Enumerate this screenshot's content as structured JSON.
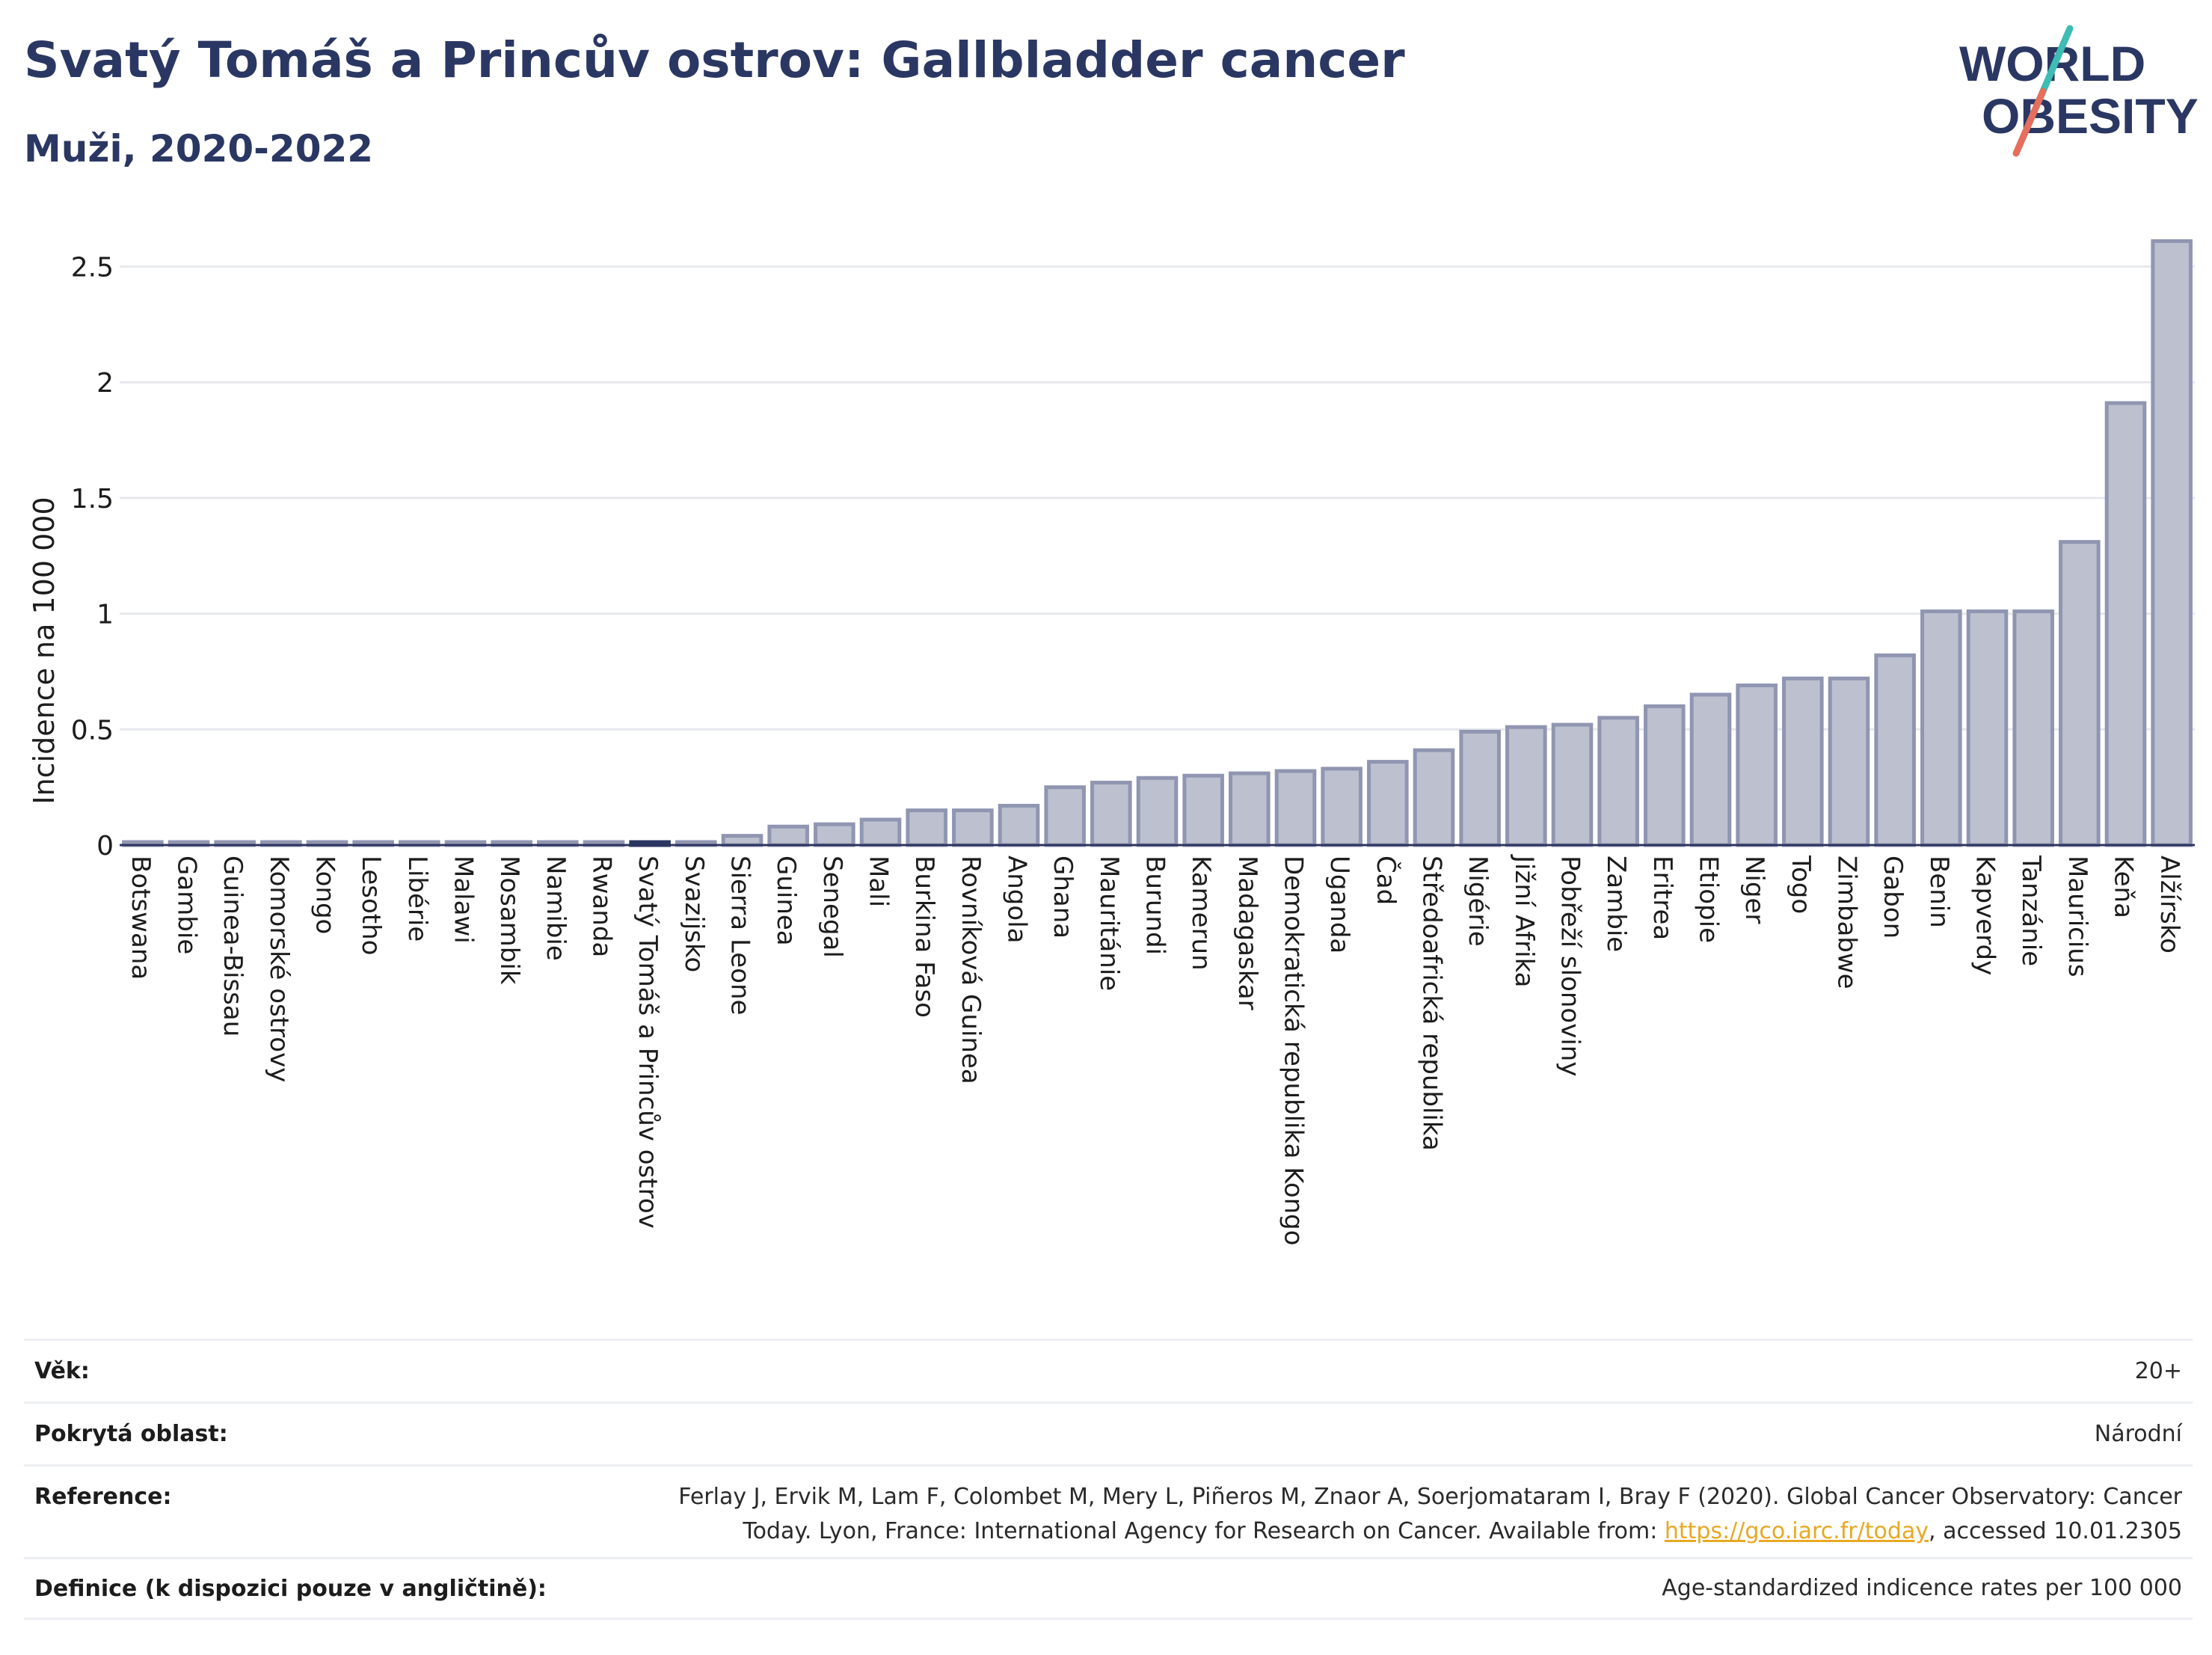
{
  "header": {
    "title": "Svatý Tomáš a Princův ostrov: Gallbladder cancer",
    "subtitle": "Muži, 2020-2022"
  },
  "logo": {
    "line1": "WORLD",
    "line2": "OBESITY"
  },
  "colors": {
    "bar_fill": "#bcc0cf",
    "bar_stroke": "#9096b1",
    "highlight_fill": "#2b3763",
    "title": "#2b3763",
    "logo_teal": "#3dbdb4",
    "logo_coral": "#e46f5d"
  },
  "chart_data": {
    "type": "bar",
    "ylabel": "Incidence na 100 000",
    "ylim": [
      0,
      2.65
    ],
    "yticks": [
      0,
      0.5,
      1,
      1.5,
      2,
      2.5
    ],
    "ytick_labels": [
      "0",
      "0.5",
      "1",
      "1.5",
      "2",
      "2.5"
    ],
    "grid": true,
    "highlight": "Svatý Tomáš a Princův ostrov",
    "categories": [
      "Botswana",
      "Gambie",
      "Guinea-Bissau",
      "Komorské ostrovy",
      "Kongo",
      "Lesotho",
      "Libérie",
      "Malawi",
      "Mosambik",
      "Namibie",
      "Rwanda",
      "Svatý Tomáš a Princův ostrov",
      "Svazijsko",
      "Sierra Leone",
      "Guinea",
      "Senegal",
      "Mali",
      "Burkina Faso",
      "Rovníková Guinea",
      "Angola",
      "Ghana",
      "Mauritánie",
      "Burundi",
      "Kamerun",
      "Madagaskar",
      "Demokratická republika Kongo",
      "Uganda",
      "Čad",
      "Středoafrická republika",
      "Nigérie",
      "Jižní Afrika",
      "Pobřeží slonoviny",
      "Zambie",
      "Eritrea",
      "Etiopie",
      "Niger",
      "Togo",
      "Zimbabwe",
      "Gabon",
      "Benin",
      "Kapverdy",
      "Tanzánie",
      "Mauricius",
      "Keňa",
      "Alžírsko"
    ],
    "values": [
      0.01,
      0.01,
      0.01,
      0.01,
      0.01,
      0.01,
      0.01,
      0.01,
      0.01,
      0.01,
      0.01,
      0.01,
      0.01,
      0.04,
      0.08,
      0.09,
      0.11,
      0.15,
      0.15,
      0.17,
      0.25,
      0.27,
      0.29,
      0.3,
      0.31,
      0.32,
      0.33,
      0.36,
      0.41,
      0.49,
      0.51,
      0.52,
      0.55,
      0.6,
      0.65,
      0.69,
      0.72,
      0.72,
      0.82,
      1.01,
      1.01,
      1.01,
      1.31,
      1.91,
      2.61
    ]
  },
  "meta": {
    "rows": [
      {
        "label": "Věk:",
        "value": "20+"
      },
      {
        "label": "Pokrytá oblast:",
        "value": "Národní"
      },
      {
        "label": "Reference:",
        "value_line1": "Ferlay J, Ervik M, Lam F, Colombet M, Mery L, Piñeros M, Znaor A, Soerjomataram I, Bray F (2020). Global Cancer Observatory: Cancer",
        "value_line2_prefix": "Today. Lyon, France: International Agency for Research on Cancer. Available from: ",
        "link": "https://gco.iarc.fr/today",
        "value_line2_suffix": ", accessed 10.01.2305"
      },
      {
        "label": "Definice (k dispozici pouze v angličtině):",
        "value": "Age-standardized indicence rates per 100 000"
      }
    ]
  }
}
